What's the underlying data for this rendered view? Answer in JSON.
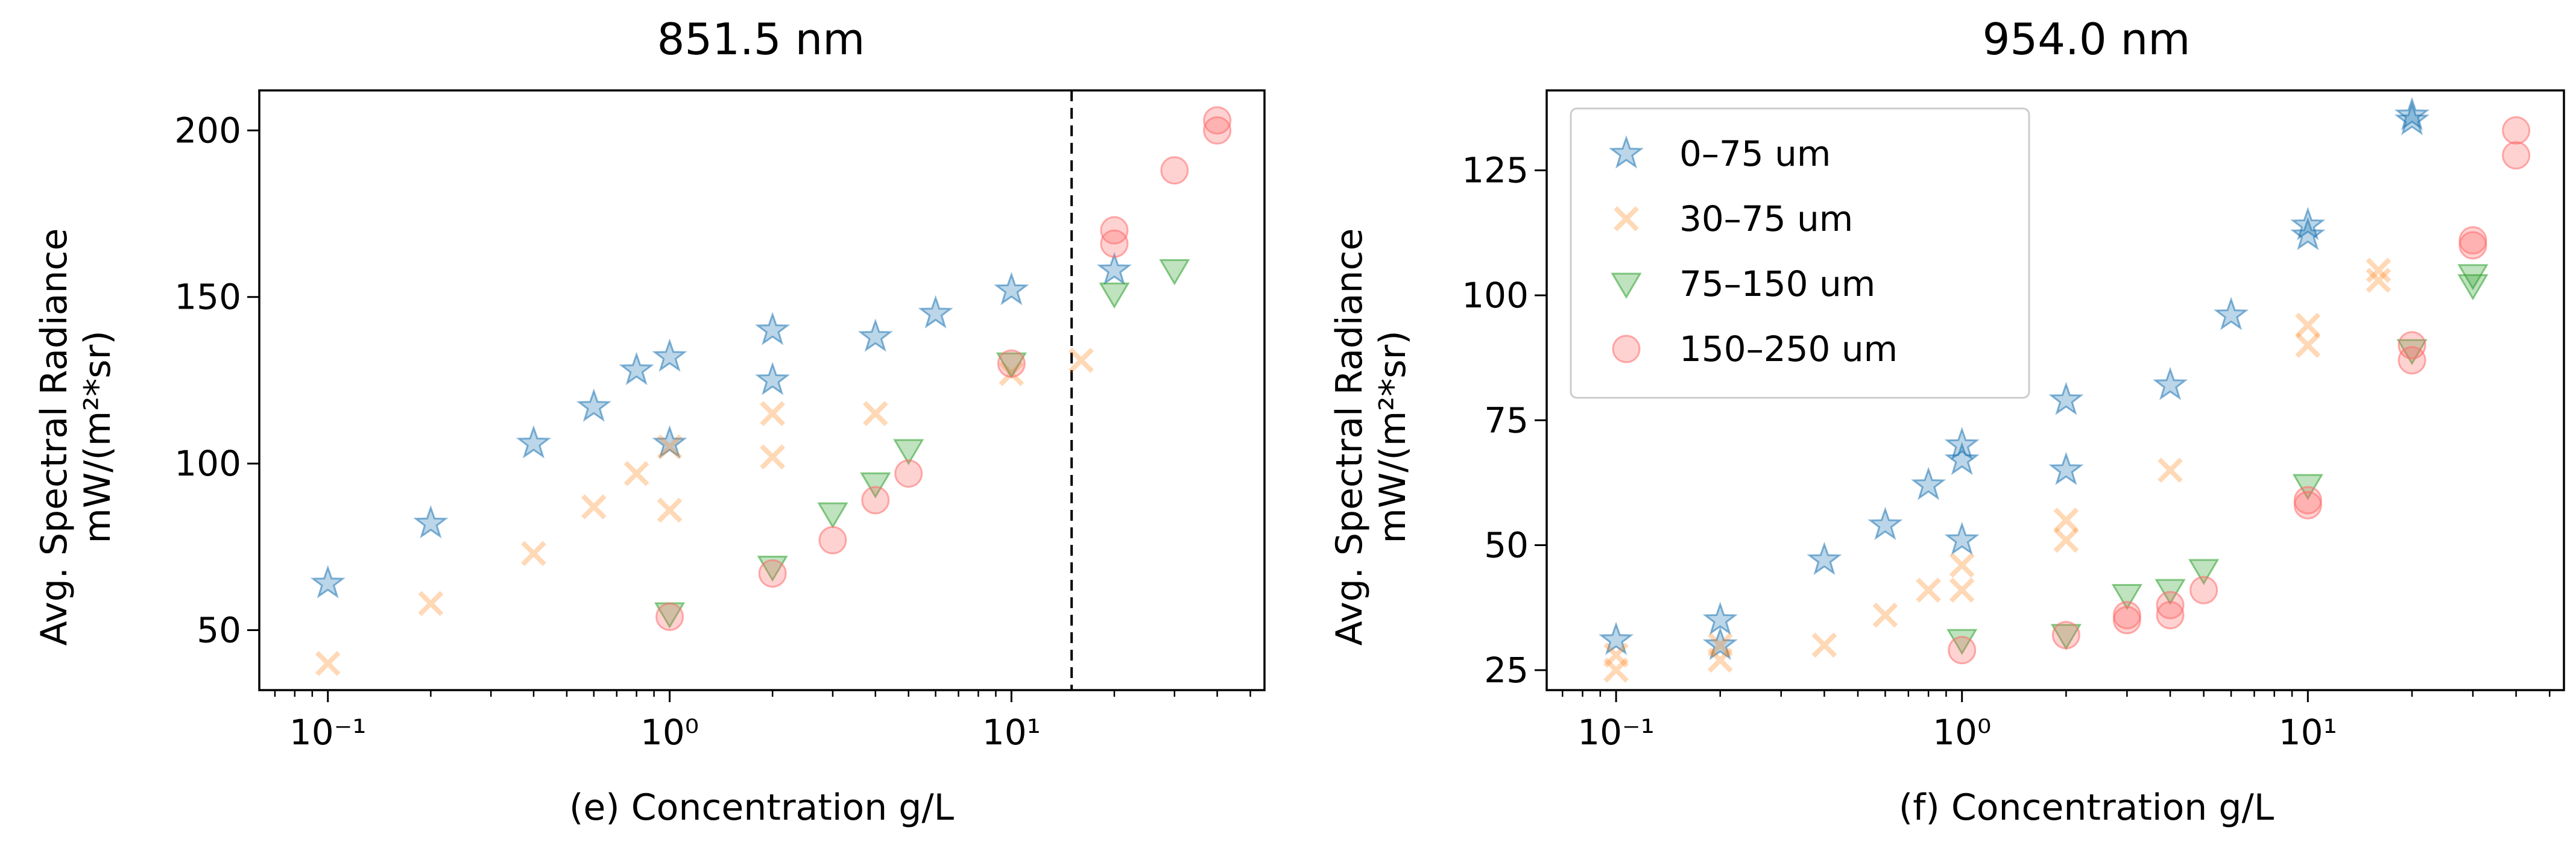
{
  "chart_data": [
    {
      "type": "scatter",
      "title": "851.5 nm",
      "xlabel": "(e) Concentration g/L",
      "ylabel": [
        "Avg. Spectral Radiance",
        "mW/(m²*sr)"
      ],
      "xscale": "log",
      "xlim": [
        0.063,
        55
      ],
      "ylim": [
        32,
        212
      ],
      "xticks": [
        {
          "value": 0.1,
          "label": "10⁻¹"
        },
        {
          "value": 1,
          "label": "10⁰"
        },
        {
          "value": 10,
          "label": "10¹"
        }
      ],
      "yticks": [
        50,
        100,
        150,
        200
      ],
      "vline": {
        "x": 15,
        "style": "dashed"
      },
      "series": [
        {
          "name": "0–75 um",
          "marker": "star",
          "color": "#1f77b4",
          "points": [
            [
              0.1,
              64
            ],
            [
              0.2,
              82
            ],
            [
              0.4,
              106
            ],
            [
              0.6,
              117
            ],
            [
              0.8,
              128
            ],
            [
              1,
              132
            ],
            [
              1,
              106
            ],
            [
              2,
              140
            ],
            [
              2,
              125
            ],
            [
              4,
              138
            ],
            [
              6,
              145
            ],
            [
              10,
              152
            ],
            [
              20,
              158
            ]
          ]
        },
        {
          "name": "30–75 um",
          "marker": "x",
          "color": "#ff7f0e",
          "points": [
            [
              0.1,
              40
            ],
            [
              0.2,
              58
            ],
            [
              0.4,
              73
            ],
            [
              0.6,
              87
            ],
            [
              0.8,
              97
            ],
            [
              1,
              105
            ],
            [
              1,
              86
            ],
            [
              2,
              115
            ],
            [
              2,
              102
            ],
            [
              4,
              115
            ],
            [
              10,
              127
            ],
            [
              16,
              131
            ]
          ]
        },
        {
          "name": "75–150 um",
          "marker": "triangle-down",
          "color": "#2ca02c",
          "points": [
            [
              1,
              55
            ],
            [
              2,
              69
            ],
            [
              3,
              85
            ],
            [
              4,
              94
            ],
            [
              5,
              104
            ],
            [
              10,
              130
            ],
            [
              20,
              151
            ],
            [
              30,
              158
            ]
          ]
        },
        {
          "name": "150–250 um",
          "marker": "circle",
          "color": "#ff6b6b",
          "points": [
            [
              1,
              54
            ],
            [
              2,
              67
            ],
            [
              3,
              77
            ],
            [
              4,
              89
            ],
            [
              5,
              97
            ],
            [
              10,
              130
            ],
            [
              20,
              170
            ],
            [
              20,
              166
            ],
            [
              30,
              188
            ],
            [
              40,
              203
            ],
            [
              40,
              200
            ]
          ]
        }
      ]
    },
    {
      "type": "scatter",
      "title": "954.0 nm",
      "xlabel": "(f) Concentration g/L",
      "ylabel": [
        "Avg. Spectral Radiance",
        "mW/(m²*sr)"
      ],
      "xscale": "log",
      "xlim": [
        0.063,
        55
      ],
      "ylim": [
        21,
        141
      ],
      "xticks": [
        {
          "value": 0.1,
          "label": "10⁻¹"
        },
        {
          "value": 1,
          "label": "10⁰"
        },
        {
          "value": 10,
          "label": "10¹"
        }
      ],
      "yticks": [
        25,
        50,
        75,
        100,
        125
      ],
      "legend": "top-left",
      "series": [
        {
          "name": "0–75 um",
          "marker": "star",
          "color": "#1f77b4",
          "points": [
            [
              0.1,
              31
            ],
            [
              0.2,
              35
            ],
            [
              0.2,
              30
            ],
            [
              0.4,
              47
            ],
            [
              0.6,
              54
            ],
            [
              0.8,
              62
            ],
            [
              1,
              70
            ],
            [
              1,
              67
            ],
            [
              1,
              51
            ],
            [
              2,
              79
            ],
            [
              2,
              65
            ],
            [
              4,
              82
            ],
            [
              6,
              96
            ],
            [
              10,
              114
            ],
            [
              10,
              112
            ],
            [
              20,
              136
            ],
            [
              20,
              135
            ]
          ]
        },
        {
          "name": "30–75 um",
          "marker": "x",
          "color": "#ff7f0e",
          "points": [
            [
              0.1,
              28
            ],
            [
              0.1,
              25
            ],
            [
              0.2,
              30
            ],
            [
              0.2,
              27
            ],
            [
              0.4,
              30
            ],
            [
              0.6,
              36
            ],
            [
              0.8,
              41
            ],
            [
              1,
              46
            ],
            [
              1,
              41
            ],
            [
              2,
              55
            ],
            [
              2,
              51
            ],
            [
              4,
              65
            ],
            [
              10,
              94
            ],
            [
              10,
              90
            ],
            [
              16,
              105
            ],
            [
              16,
              103
            ]
          ]
        },
        {
          "name": "75–150 um",
          "marker": "triangle-down",
          "color": "#2ca02c",
          "points": [
            [
              1,
              31
            ],
            [
              2,
              32
            ],
            [
              3,
              40
            ],
            [
              4,
              41
            ],
            [
              5,
              45
            ],
            [
              10,
              62
            ],
            [
              20,
              89
            ],
            [
              30,
              104
            ],
            [
              30,
              102
            ]
          ]
        },
        {
          "name": "150–250 um",
          "marker": "circle",
          "color": "#ff6b6b",
          "points": [
            [
              1,
              29
            ],
            [
              2,
              32
            ],
            [
              3,
              36
            ],
            [
              3,
              35
            ],
            [
              4,
              38
            ],
            [
              4,
              36
            ],
            [
              5,
              41
            ],
            [
              10,
              59
            ],
            [
              10,
              58
            ],
            [
              20,
              90
            ],
            [
              20,
              87
            ],
            [
              30,
              111
            ],
            [
              30,
              110
            ],
            [
              40,
              133
            ],
            [
              40,
              128
            ]
          ]
        }
      ]
    }
  ]
}
